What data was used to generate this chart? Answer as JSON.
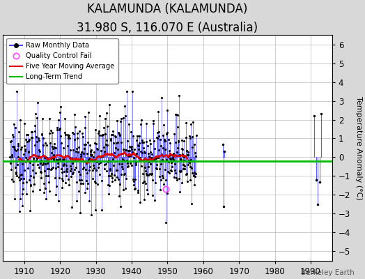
{
  "title": "KALAMUNDA (KALAMUNDA)",
  "subtitle": "31.980 S, 116.070 E (Australia)",
  "ylabel": "Temperature Anomaly (°C)",
  "xlim": [
    1904,
    1996
  ],
  "ylim": [
    -5.5,
    6.5
  ],
  "yticks": [
    -5,
    -4,
    -3,
    -2,
    -1,
    0,
    1,
    2,
    3,
    4,
    5,
    6
  ],
  "xticks": [
    1910,
    1920,
    1930,
    1940,
    1950,
    1960,
    1970,
    1980,
    1990
  ],
  "dense_start": 1906,
  "dense_end": 1957,
  "sparse_years": [
    1965.5,
    1965.7,
    1965.9,
    1991.0,
    1991.5,
    1992.0,
    1992.5,
    1993.0
  ],
  "sparse_vals": [
    0.7,
    -2.6,
    0.3,
    2.2,
    -1.2,
    -2.5,
    -1.3,
    2.3
  ],
  "trend_y": -0.2,
  "trend_x_start": 1904,
  "trend_x_end": 1996,
  "background_color": "#d8d8d8",
  "plot_background": "#ffffff",
  "grid_color": "#aaaaaa",
  "raw_line_color": "#4444ff",
  "raw_marker_color": "#000000",
  "ma_color": "#dd0000",
  "trend_color": "#00bb00",
  "qc_color": "#ff44ff",
  "title_fontsize": 12,
  "subtitle_fontsize": 9.5,
  "tick_fontsize": 8.5,
  "label_fontsize": 8,
  "watermark": "Berkeley Earth",
  "seed": 12345
}
